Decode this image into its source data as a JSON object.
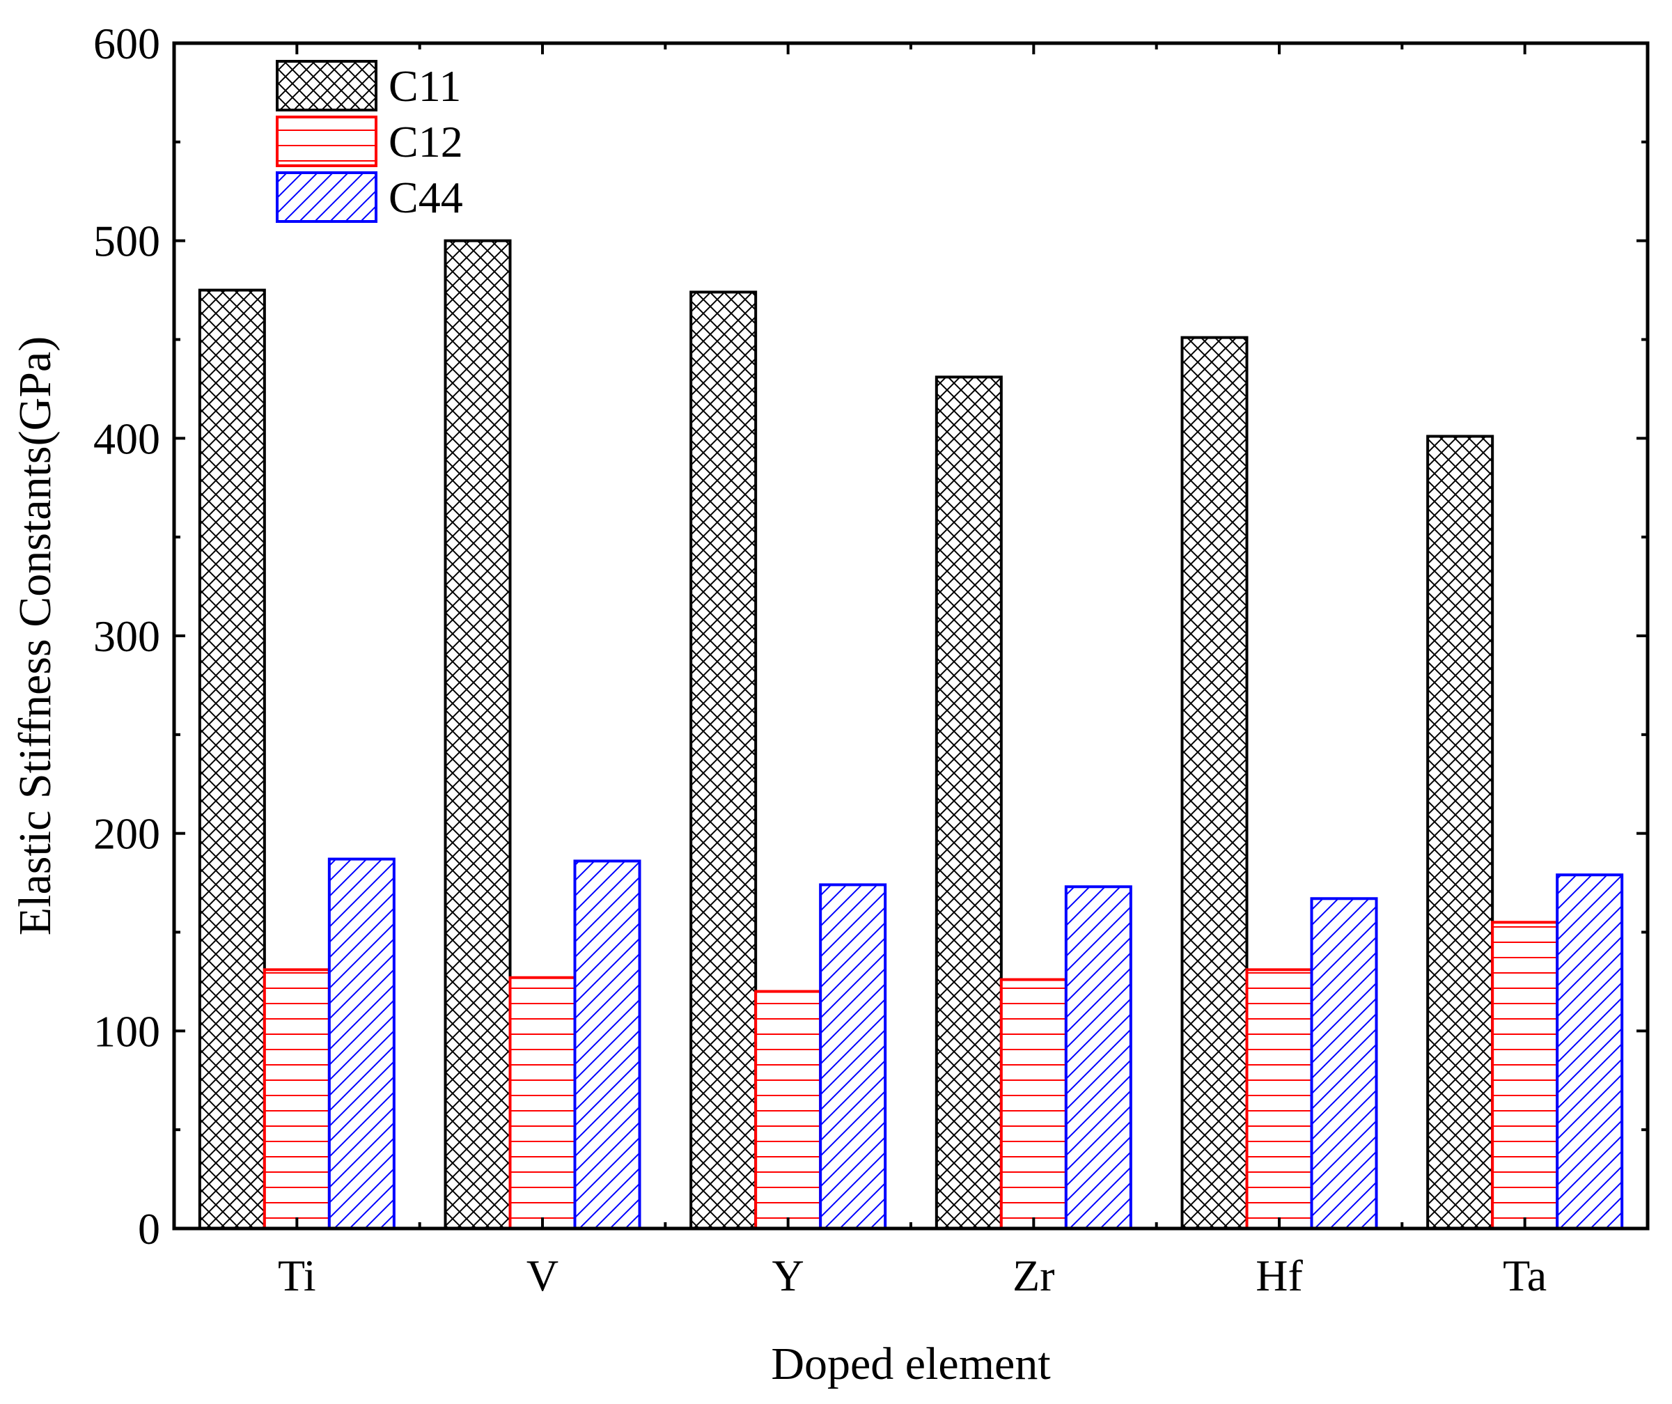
{
  "chart_data": {
    "type": "bar",
    "title": "",
    "xlabel": "Doped element",
    "ylabel": "Elastic Stiffness Constants(GPa)",
    "ylim": [
      0,
      600
    ],
    "yticks": [
      0,
      100,
      200,
      300,
      400,
      500,
      600
    ],
    "categories": [
      "Ti",
      "V",
      "Y",
      "Zr",
      "Hf",
      "Ta"
    ],
    "legend_position": "top-left",
    "series": [
      {
        "name": "C11",
        "color": "#000000",
        "pattern": "crosshatch",
        "values": [
          475,
          500,
          474,
          431,
          451,
          401
        ]
      },
      {
        "name": "C12",
        "color": "#ff0000",
        "pattern": "horizontal",
        "values": [
          131,
          127,
          120,
          126,
          131,
          155
        ]
      },
      {
        "name": "C44",
        "color": "#0000ff",
        "pattern": "diagonal",
        "values": [
          187,
          186,
          174,
          173,
          167,
          179
        ]
      }
    ]
  }
}
